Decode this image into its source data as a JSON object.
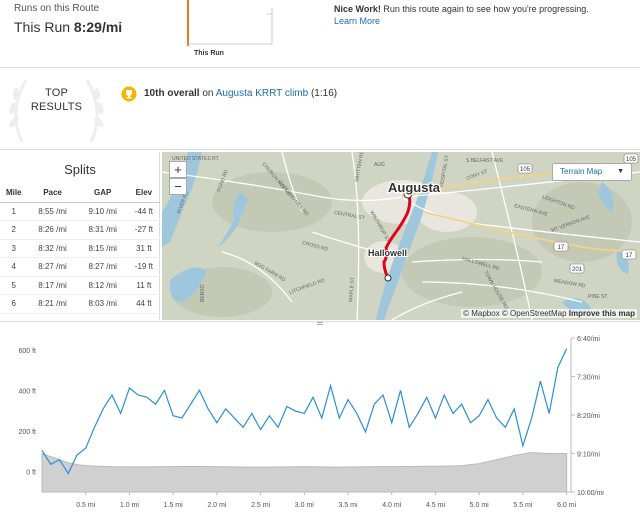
{
  "route": {
    "label": "Runs on this Route",
    "this_run_prefix": "This Run ",
    "this_run_pace": "8:29/mi",
    "marker_label": "This Run",
    "nice_title": "Nice Work!",
    "nice_text": " Run this route again to see how you're progressing.",
    "learn_more": "Learn More"
  },
  "top_results": {
    "title_line1": "TOP",
    "title_line2": "RESULTS",
    "place": "10th overall",
    "on": " on ",
    "segment": "Augusta KRRT climb",
    "time": " (1:16)"
  },
  "splits": {
    "title": "Splits",
    "headers": [
      "Mile",
      "Pace",
      "GAP",
      "Elev"
    ],
    "rows": [
      [
        "1",
        "8:55 /mi",
        "9:10 /mi",
        "-44 ft"
      ],
      [
        "2",
        "8:26 /mi",
        "8:31 /mi",
        "-27 ft"
      ],
      [
        "3",
        "8:32 /mi",
        "8:15 /mi",
        "31 ft"
      ],
      [
        "4",
        "8:27 /mi",
        "8:27 /mi",
        "-19 ft"
      ],
      [
        "5",
        "8:17 /mi",
        "8:12 /mi",
        "11 ft"
      ],
      [
        "6",
        "8:21 /mi",
        "8:03 /mi",
        "44 ft"
      ]
    ]
  },
  "map": {
    "zoom_in": "+",
    "zoom_out": "−",
    "terrain_label": "Terrain Map",
    "attribution_1": "© Mapbox © OpenStreetMap ",
    "attribution_2": "Improve this map",
    "city_1": "Augusta",
    "city_2": "Hallowell",
    "streets": [
      "UNITED STATES RT",
      "POND RD",
      "RIVER RD",
      "WINTHROP ST",
      "CENTRAL ST",
      "WHITTEN RD",
      "LITCHFIELD RD",
      "MAPLE ST",
      "BOG FARM RD",
      "HALLOWELL RD",
      "TOWN HOUSE RD",
      "EASTERN AVE",
      "CONY ST",
      "HOSPITAL ST",
      "S BELFAST AVE",
      "CHURCH HILL RD",
      "AUG",
      "GARLAND HILL RD",
      "MEADOW RD",
      "PINE ST",
      "LEIGHTON RD",
      "BENSO",
      "CROSS RD",
      "MT VERNON AVE"
    ],
    "route_shields": [
      "105",
      "17",
      "105",
      "17",
      "201"
    ],
    "colors": {
      "water": "#9ec6dd",
      "route": "#e3001b",
      "land": "#cfd4c3"
    }
  },
  "elevation": {
    "left_ticks": [
      "600 ft",
      "400 ft",
      "200 ft",
      "0 ft"
    ],
    "right_ticks": [
      "6:40/mi",
      "7:30/mi",
      "8:20/mi",
      "9:10/mi",
      "10:00/mi"
    ],
    "x_ticks": [
      "0.5 mi",
      "1.0 mi",
      "1.5 mi",
      "2.0 mi",
      "2.5 mi",
      "3.0 mi",
      "3.5 mi",
      "4.0 mi",
      "4.5 mi",
      "5.0 mi",
      "5.5 mi",
      "6.0 mi"
    ],
    "colors": {
      "pace": "#2b8ed6",
      "elevation_fill": "#d0d0d0"
    }
  },
  "chart_data": {
    "type": "area",
    "xlabel": "",
    "ylabel": "",
    "x_unit": "mi",
    "xlim": [
      0,
      6.05
    ],
    "ylim": [
      -100,
      660
    ],
    "pace_ylim_min_per_mile": [
      6.667,
      10.0
    ],
    "series": [
      {
        "unit": "ft",
        "type": "area",
        "x": [
          0,
          0.1,
          0.2,
          0.3,
          0.4,
          0.5,
          0.6,
          0.8,
          1.0,
          1.2,
          1.4,
          1.6,
          1.8,
          2.0,
          2.2,
          2.4,
          2.6,
          2.8,
          3.0,
          3.2,
          3.4,
          3.6,
          3.8,
          4.0,
          4.2,
          4.4,
          4.6,
          4.8,
          5.0,
          5.2,
          5.4,
          5.6,
          5.8,
          6.0
        ],
        "values": [
          90,
          75,
          60,
          45,
          35,
          30,
          28,
          25,
          24,
          24,
          25,
          26,
          26,
          25,
          24,
          23,
          23,
          24,
          25,
          24,
          23,
          24,
          25,
          25,
          26,
          27,
          28,
          30,
          40,
          60,
          80,
          95,
          90,
          90
        ]
      },
      {
        "unit": "min/mi",
        "type": "line",
        "x": [
          0,
          0.1,
          0.2,
          0.3,
          0.4,
          0.5,
          0.6,
          0.7,
          0.8,
          0.9,
          1.0,
          1.1,
          1.2,
          1.3,
          1.4,
          1.5,
          1.6,
          1.7,
          1.8,
          1.9,
          2.0,
          2.1,
          2.2,
          2.3,
          2.4,
          2.5,
          2.6,
          2.7,
          2.8,
          2.9,
          3.0,
          3.1,
          3.2,
          3.3,
          3.4,
          3.5,
          3.6,
          3.7,
          3.8,
          3.9,
          4.0,
          4.1,
          4.2,
          4.3,
          4.4,
          4.5,
          4.6,
          4.7,
          4.8,
          4.9,
          5.0,
          5.1,
          5.2,
          5.3,
          5.4,
          5.5,
          5.6,
          5.7,
          5.8,
          5.9,
          6.0
        ],
        "values": [
          9.1,
          9.4,
          9.3,
          9.6,
          9.2,
          9.05,
          8.6,
          8.2,
          7.9,
          8.3,
          7.75,
          7.9,
          7.95,
          8.1,
          7.8,
          8.35,
          8.4,
          8.1,
          7.8,
          8.2,
          8.5,
          8.2,
          8.4,
          8.6,
          8.3,
          8.65,
          8.35,
          8.6,
          8.15,
          8.25,
          8.3,
          7.95,
          8.4,
          7.7,
          8.4,
          8.0,
          8.3,
          8.7,
          8.1,
          7.9,
          8.5,
          7.8,
          8.6,
          8.3,
          7.95,
          8.4,
          7.9,
          8.3,
          8.1,
          8.5,
          8.35,
          8.0,
          8.4,
          8.6,
          8.2,
          9.0,
          8.4,
          7.6,
          8.3,
          7.3,
          6.9
        ]
      }
    ],
    "grid": false
  }
}
